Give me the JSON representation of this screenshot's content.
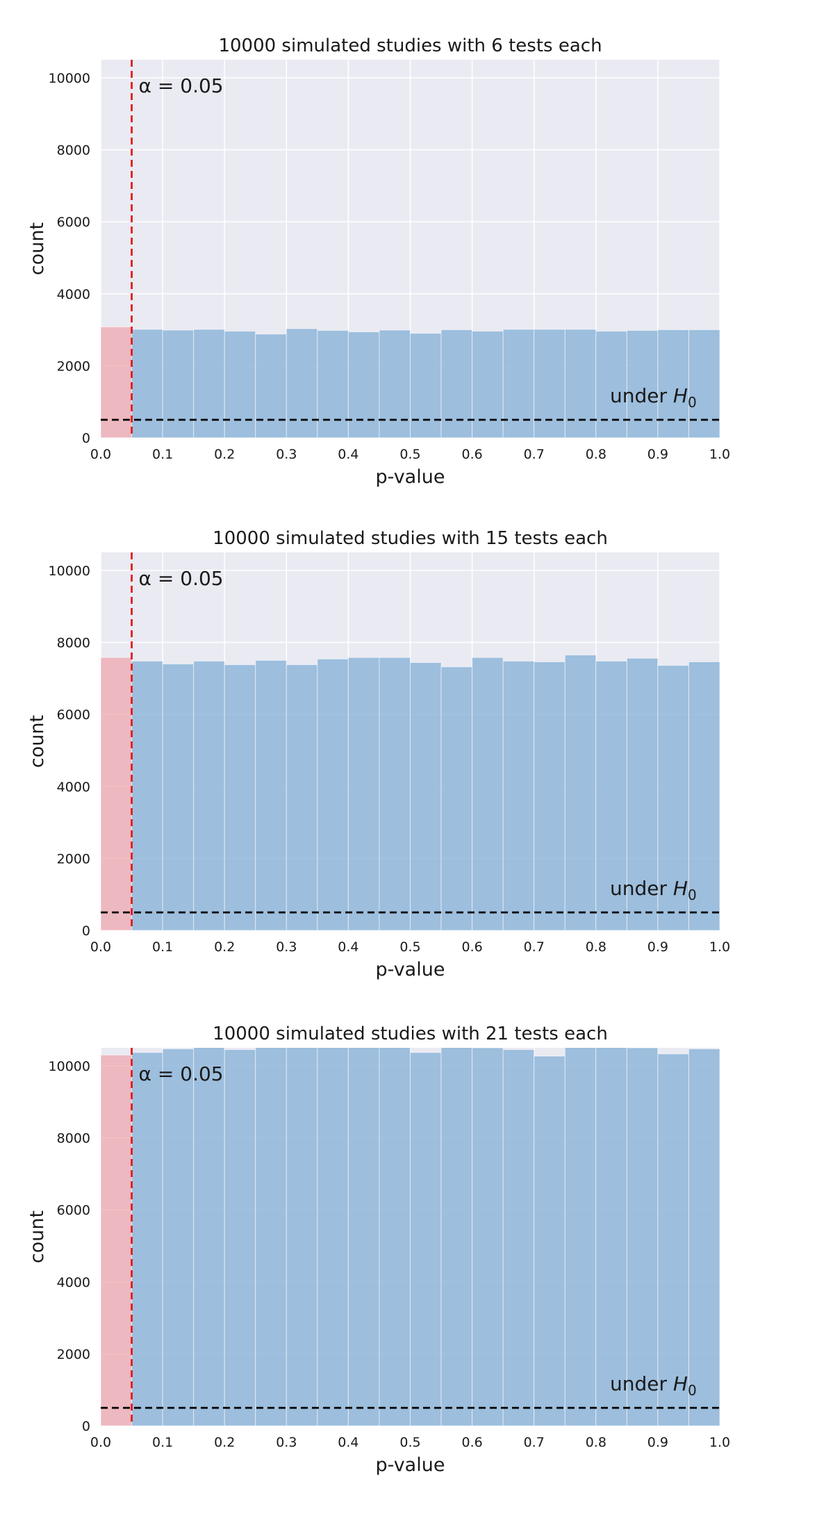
{
  "chart_data": [
    {
      "type": "bar",
      "title": "10000 simulated studies with 6 tests each",
      "xlabel": "p-value",
      "ylabel": "count",
      "xlim": [
        0.0,
        1.0
      ],
      "ylim": [
        0,
        10500
      ],
      "xticks": [
        "0.0",
        "0.1",
        "0.2",
        "0.3",
        "0.4",
        "0.5",
        "0.6",
        "0.7",
        "0.8",
        "0.9",
        "1.0"
      ],
      "yticks": [
        "0",
        "2000",
        "4000",
        "6000",
        "8000",
        "10000"
      ],
      "bin_width": 0.05,
      "bin_starts": [
        0.0,
        0.05,
        0.1,
        0.15,
        0.2,
        0.25,
        0.3,
        0.35,
        0.4,
        0.45,
        0.5,
        0.55,
        0.6,
        0.65,
        0.7,
        0.75,
        0.8,
        0.85,
        0.9,
        0.95
      ],
      "values": [
        3080,
        3010,
        2990,
        3010,
        2960,
        2880,
        3030,
        2980,
        2940,
        2990,
        2900,
        3000,
        2960,
        3010,
        3010,
        3010,
        2960,
        2980,
        3000,
        3000
      ],
      "alpha_line": {
        "x": 0.05,
        "label": "α = 0.05"
      },
      "null_line": {
        "y": 500,
        "label_prefix": "under ",
        "label_var": "H",
        "label_sub": "0"
      },
      "grid": true,
      "colors": {
        "significant": "#f0a3ab",
        "nonsignificant": "#8fb6d9",
        "alpha_line": "#e31a1c",
        "null_line": "#000000",
        "background": "#eaeaf2"
      }
    },
    {
      "type": "bar",
      "title": "10000 simulated studies with 15 tests each",
      "xlabel": "p-value",
      "ylabel": "count",
      "xlim": [
        0.0,
        1.0
      ],
      "ylim": [
        0,
        10500
      ],
      "xticks": [
        "0.0",
        "0.1",
        "0.2",
        "0.3",
        "0.4",
        "0.5",
        "0.6",
        "0.7",
        "0.8",
        "0.9",
        "1.0"
      ],
      "yticks": [
        "0",
        "2000",
        "4000",
        "6000",
        "8000",
        "10000"
      ],
      "bin_width": 0.05,
      "bin_starts": [
        0.0,
        0.05,
        0.1,
        0.15,
        0.2,
        0.25,
        0.3,
        0.35,
        0.4,
        0.45,
        0.5,
        0.55,
        0.6,
        0.65,
        0.7,
        0.75,
        0.8,
        0.85,
        0.9,
        0.95
      ],
      "values": [
        7580,
        7480,
        7400,
        7480,
        7380,
        7500,
        7380,
        7540,
        7580,
        7580,
        7440,
        7320,
        7580,
        7480,
        7460,
        7650,
        7480,
        7560,
        7360,
        7460
      ],
      "alpha_line": {
        "x": 0.05,
        "label": "α = 0.05"
      },
      "null_line": {
        "y": 500,
        "label_prefix": "under ",
        "label_var": "H",
        "label_sub": "0"
      },
      "grid": true,
      "colors": {
        "significant": "#f0a3ab",
        "nonsignificant": "#8fb6d9",
        "alpha_line": "#e31a1c",
        "null_line": "#000000",
        "background": "#eaeaf2"
      }
    },
    {
      "type": "bar",
      "title": "10000 simulated studies with 21 tests each",
      "xlabel": "p-value",
      "ylabel": "count",
      "xlim": [
        0.0,
        1.0
      ],
      "ylim": [
        0,
        10500
      ],
      "xticks": [
        "0.0",
        "0.1",
        "0.2",
        "0.3",
        "0.4",
        "0.5",
        "0.6",
        "0.7",
        "0.8",
        "0.9",
        "1.0"
      ],
      "yticks": [
        "0",
        "2000",
        "4000",
        "6000",
        "8000",
        "10000"
      ],
      "bin_width": 0.05,
      "bin_starts": [
        0.0,
        0.05,
        0.1,
        0.15,
        0.2,
        0.25,
        0.3,
        0.35,
        0.4,
        0.45,
        0.5,
        0.55,
        0.6,
        0.65,
        0.7,
        0.75,
        0.8,
        0.85,
        0.9,
        0.95
      ],
      "values": [
        10300,
        10370,
        10470,
        10510,
        10450,
        10520,
        10510,
        10550,
        10540,
        10510,
        10370,
        10520,
        10500,
        10450,
        10270,
        10540,
        10510,
        10500,
        10330,
        10470
      ],
      "alpha_line": {
        "x": 0.05,
        "label": "α = 0.05"
      },
      "null_line": {
        "y": 500,
        "label_prefix": "under ",
        "label_var": "H",
        "label_sub": "0"
      },
      "grid": true,
      "colors": {
        "significant": "#f0a3ab",
        "nonsignificant": "#8fb6d9",
        "alpha_line": "#e31a1c",
        "null_line": "#000000",
        "background": "#eaeaf2"
      }
    }
  ]
}
